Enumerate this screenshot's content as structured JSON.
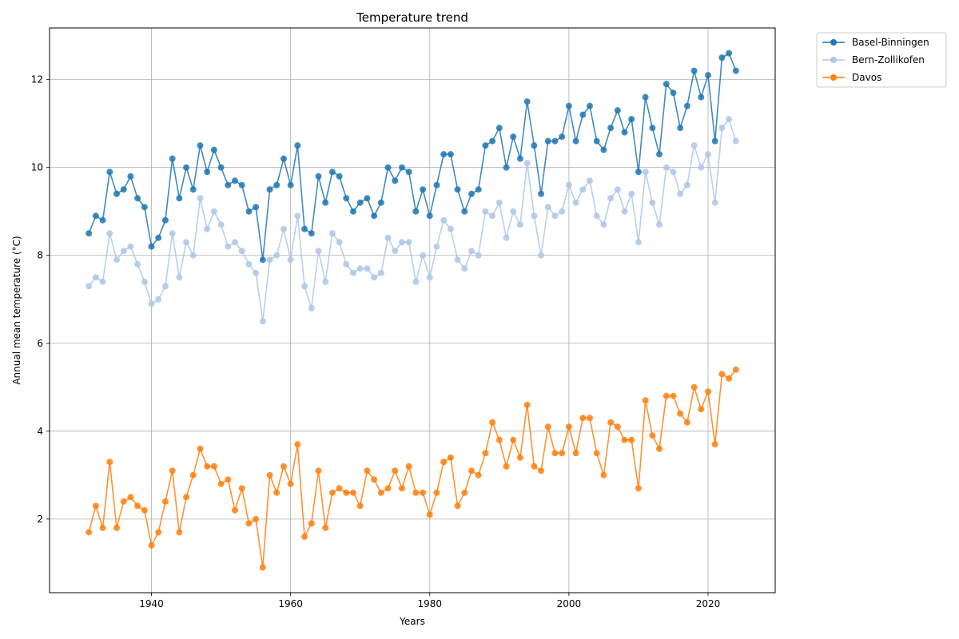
{
  "chart_data": {
    "type": "line",
    "title": "Temperature trend",
    "xlabel": "Years",
    "ylabel": "Annual mean temperature (°C)",
    "xlim": [
      1925.35,
      2029.65
    ],
    "ylim": [
      0.325,
      13.175
    ],
    "x_ticks": [
      1940,
      1960,
      1980,
      2000,
      2020
    ],
    "y_ticks": [
      2,
      4,
      6,
      8,
      10,
      12
    ],
    "grid": true,
    "legend_position": "outside top-right",
    "x": [
      1931,
      1932,
      1933,
      1934,
      1935,
      1936,
      1937,
      1938,
      1939,
      1940,
      1941,
      1942,
      1943,
      1944,
      1945,
      1946,
      1947,
      1948,
      1949,
      1950,
      1951,
      1952,
      1953,
      1954,
      1955,
      1956,
      1957,
      1958,
      1959,
      1960,
      1961,
      1962,
      1963,
      1964,
      1965,
      1966,
      1967,
      1968,
      1969,
      1970,
      1971,
      1972,
      1973,
      1974,
      1975,
      1976,
      1977,
      1978,
      1979,
      1980,
      1981,
      1982,
      1983,
      1984,
      1985,
      1986,
      1987,
      1988,
      1989,
      1990,
      1991,
      1992,
      1993,
      1994,
      1995,
      1996,
      1997,
      1998,
      1999,
      2000,
      2001,
      2002,
      2003,
      2004,
      2005,
      2006,
      2007,
      2008,
      2009,
      2010,
      2011,
      2012,
      2013,
      2014,
      2015,
      2016,
      2017,
      2018,
      2019,
      2020,
      2021,
      2022,
      2023,
      2024
    ],
    "series": [
      {
        "name": "Basel-Binningen",
        "color": "#1f77b4",
        "values": [
          8.5,
          8.9,
          8.8,
          9.9,
          9.4,
          9.5,
          9.8,
          9.3,
          9.1,
          8.2,
          8.4,
          8.8,
          10.2,
          9.3,
          10.0,
          9.5,
          10.5,
          9.9,
          10.4,
          10.0,
          9.6,
          9.7,
          9.6,
          9.0,
          9.1,
          7.9,
          9.5,
          9.6,
          10.2,
          9.6,
          10.5,
          8.6,
          8.5,
          9.8,
          9.2,
          9.9,
          9.8,
          9.3,
          9.0,
          9.2,
          9.3,
          8.9,
          9.2,
          10.0,
          9.7,
          10.0,
          9.9,
          9.0,
          9.5,
          8.9,
          9.6,
          10.3,
          10.3,
          9.5,
          9.0,
          9.4,
          9.5,
          10.5,
          10.6,
          10.9,
          10.0,
          10.7,
          10.2,
          11.5,
          10.5,
          9.4,
          10.6,
          10.6,
          10.7,
          11.4,
          10.6,
          11.2,
          11.4,
          10.6,
          10.4,
          10.9,
          11.3,
          10.8,
          11.1,
          9.9,
          11.6,
          10.9,
          10.3,
          11.9,
          11.7,
          10.9,
          11.4,
          12.2,
          11.6,
          12.1,
          10.6,
          12.5,
          12.6,
          12.2
        ]
      },
      {
        "name": "Bern-Zollikofen",
        "color": "#aec7e8",
        "values": [
          7.3,
          7.5,
          7.4,
          8.5,
          7.9,
          8.1,
          8.2,
          7.8,
          7.4,
          6.9,
          7.0,
          7.3,
          8.5,
          7.5,
          8.3,
          8.0,
          9.3,
          8.6,
          9.0,
          8.7,
          8.2,
          8.3,
          8.1,
          7.8,
          7.6,
          6.5,
          7.9,
          8.0,
          8.6,
          7.9,
          8.9,
          7.3,
          6.8,
          8.1,
          7.4,
          8.5,
          8.3,
          7.8,
          7.6,
          7.7,
          7.7,
          7.5,
          7.6,
          8.4,
          8.1,
          8.3,
          8.3,
          7.4,
          8.0,
          7.5,
          8.2,
          8.8,
          8.6,
          7.9,
          7.7,
          8.1,
          8.0,
          9.0,
          8.9,
          9.2,
          8.4,
          9.0,
          8.7,
          10.1,
          8.9,
          8.0,
          9.1,
          8.9,
          9.0,
          9.6,
          9.2,
          9.5,
          9.7,
          8.9,
          8.7,
          9.3,
          9.5,
          9.0,
          9.4,
          8.3,
          9.9,
          9.2,
          8.7,
          10.0,
          9.9,
          9.4,
          9.6,
          10.5,
          10.0,
          10.3,
          9.2,
          10.9,
          11.1,
          10.6
        ]
      },
      {
        "name": "Davos",
        "color": "#ff7f0e",
        "values": [
          1.7,
          2.3,
          1.8,
          3.3,
          1.8,
          2.4,
          2.5,
          2.3,
          2.2,
          1.4,
          1.7,
          2.4,
          3.1,
          1.7,
          2.5,
          3.0,
          3.6,
          3.2,
          3.2,
          2.8,
          2.9,
          2.2,
          2.7,
          1.9,
          2.0,
          0.9,
          3.0,
          2.6,
          3.2,
          2.8,
          3.7,
          1.6,
          1.9,
          3.1,
          1.8,
          2.6,
          2.7,
          2.6,
          2.6,
          2.3,
          3.1,
          2.9,
          2.6,
          2.7,
          3.1,
          2.7,
          3.2,
          2.6,
          2.6,
          2.1,
          2.6,
          3.3,
          3.4,
          2.3,
          2.6,
          3.1,
          3.0,
          3.5,
          4.2,
          3.8,
          3.2,
          3.8,
          3.4,
          4.6,
          3.2,
          3.1,
          4.1,
          3.5,
          3.5,
          4.1,
          3.5,
          4.3,
          4.3,
          3.5,
          3.0,
          4.2,
          4.1,
          3.8,
          3.8,
          2.7,
          4.7,
          3.9,
          3.6,
          4.8,
          4.8,
          4.4,
          4.2,
          5.0,
          4.5,
          4.9,
          3.7,
          5.3,
          5.2,
          5.4
        ]
      }
    ]
  }
}
